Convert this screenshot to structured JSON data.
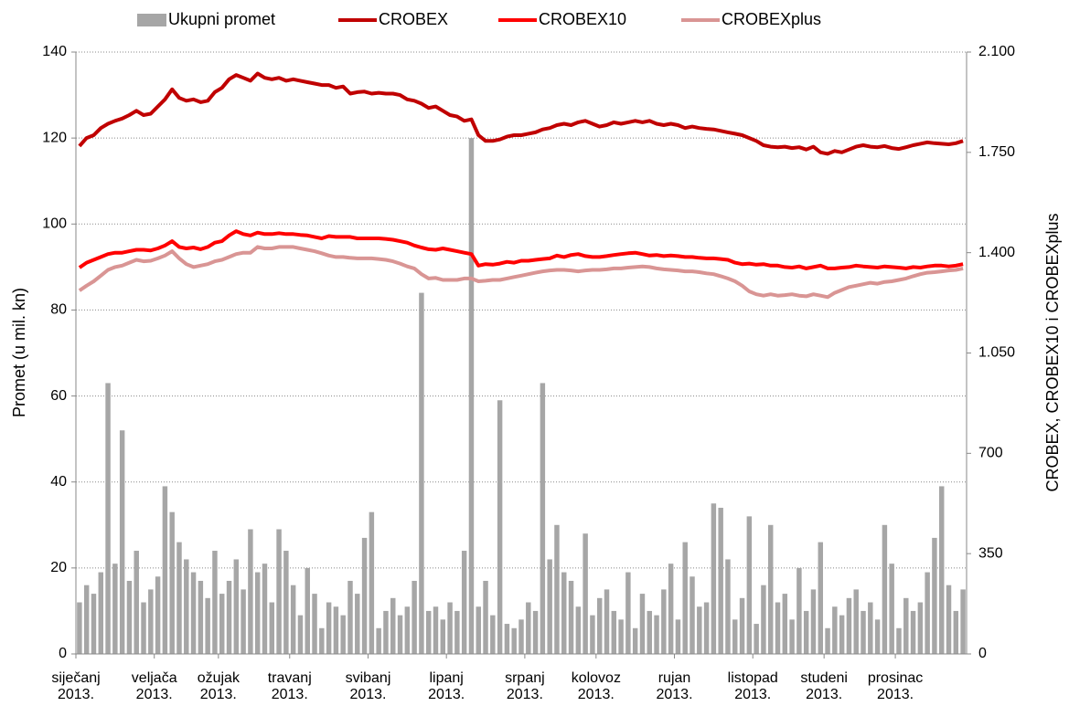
{
  "chart_data": {
    "type": "combo",
    "y_label": "Promet (u mil. kn)",
    "y2_label": "CROBEX, CROBEX10 i CROBEXplus",
    "ylim": [
      0,
      140
    ],
    "yticks": [
      0,
      20,
      40,
      60,
      80,
      100,
      120,
      140
    ],
    "y2lim": [
      0,
      2100
    ],
    "y2ticks": [
      0,
      350,
      700,
      {
        "value": 1050,
        "label": "1.050"
      },
      {
        "value": 1400,
        "label": "1.400"
      },
      {
        "value": 1750,
        "label": "1.750"
      },
      {
        "value": 2100,
        "label": "2.100"
      }
    ],
    "grid": true,
    "legend": "top",
    "categories": [
      "siječanj\n2013.",
      null,
      null,
      null,
      null,
      null,
      null,
      null,
      null,
      null,
      null,
      "veljača\n2013.",
      null,
      null,
      null,
      null,
      null,
      null,
      null,
      null,
      "ožujak\n2013.",
      null,
      null,
      null,
      null,
      null,
      null,
      null,
      null,
      null,
      "travanj\n2013.",
      null,
      null,
      null,
      null,
      null,
      null,
      null,
      null,
      null,
      null,
      "svibanj\n2013.",
      null,
      null,
      null,
      null,
      null,
      null,
      null,
      null,
      null,
      null,
      "lipanj\n2013.",
      null,
      null,
      null,
      null,
      null,
      null,
      null,
      null,
      null,
      null,
      "srpanj\n2013.",
      null,
      null,
      null,
      null,
      null,
      null,
      null,
      null,
      null,
      "kolovoz\n2013.",
      null,
      null,
      null,
      null,
      null,
      null,
      null,
      null,
      null,
      null,
      "rujan\n2013.",
      null,
      null,
      null,
      null,
      null,
      null,
      null,
      null,
      null,
      null,
      "listopad\n2013.",
      null,
      null,
      null,
      null,
      null,
      null,
      null,
      null,
      null,
      "studeni\n2013.",
      null,
      null,
      null,
      null,
      null,
      null,
      null,
      null,
      null,
      "prosinac\n2013.",
      null,
      null,
      null,
      null,
      null,
      null,
      null,
      null,
      null
    ],
    "series": [
      {
        "name": "Ukupni promet",
        "type": "bar",
        "color": "#a6a6a6",
        "axis": "y",
        "values": [
          12,
          16,
          14,
          19,
          63,
          21,
          52,
          17,
          24,
          12,
          15,
          18,
          39,
          33,
          26,
          22,
          19,
          17,
          13,
          24,
          14,
          17,
          22,
          15,
          29,
          19,
          21,
          12,
          29,
          24,
          16,
          9,
          20,
          14,
          6,
          12,
          11,
          9,
          17,
          14,
          27,
          33,
          6,
          10,
          13,
          9,
          11,
          17,
          84,
          10,
          11,
          8,
          12,
          10,
          24,
          120,
          11,
          17,
          9,
          59,
          7,
          6,
          8,
          12,
          10,
          63,
          22,
          30,
          19,
          17,
          11,
          28,
          9,
          13,
          15,
          10,
          8,
          19,
          6,
          14,
          10,
          9,
          15,
          21,
          8,
          26,
          18,
          11,
          12,
          35,
          34,
          22,
          8,
          13,
          32,
          7,
          16,
          30,
          12,
          14,
          8,
          20,
          10,
          15,
          26,
          6,
          11,
          9,
          13,
          15,
          10,
          12,
          8,
          30,
          21,
          6,
          13,
          10,
          12,
          19,
          27,
          39,
          16,
          10,
          15
        ]
      },
      {
        "name": "CROBEX",
        "type": "line",
        "color": "#c00000",
        "axis": "y2",
        "values": [
          1772,
          1800,
          1810,
          1835,
          1850,
          1860,
          1868,
          1880,
          1895,
          1880,
          1885,
          1910,
          1935,
          1970,
          1940,
          1930,
          1935,
          1925,
          1930,
          1960,
          1975,
          2005,
          2020,
          2010,
          2000,
          2025,
          2010,
          2005,
          2010,
          2000,
          2005,
          2000,
          1995,
          1990,
          1985,
          1985,
          1975,
          1980,
          1955,
          1960,
          1962,
          1955,
          1958,
          1955,
          1955,
          1950,
          1935,
          1930,
          1920,
          1905,
          1910,
          1895,
          1880,
          1875,
          1860,
          1865,
          1810,
          1790,
          1790,
          1795,
          1805,
          1810,
          1810,
          1815,
          1820,
          1830,
          1835,
          1845,
          1850,
          1845,
          1855,
          1860,
          1850,
          1840,
          1845,
          1855,
          1850,
          1855,
          1860,
          1855,
          1860,
          1850,
          1845,
          1850,
          1845,
          1835,
          1840,
          1835,
          1832,
          1830,
          1825,
          1820,
          1815,
          1810,
          1800,
          1790,
          1775,
          1770,
          1768,
          1770,
          1765,
          1768,
          1760,
          1770,
          1750,
          1745,
          1755,
          1750,
          1760,
          1770,
          1775,
          1770,
          1768,
          1772,
          1765,
          1762,
          1768,
          1775,
          1780,
          1785,
          1782,
          1780,
          1778,
          1782,
          1790
        ]
      },
      {
        "name": "CROBEX10",
        "type": "line",
        "color": "#ff0000",
        "axis": "y2",
        "values": [
          1348,
          1365,
          1375,
          1385,
          1395,
          1400,
          1400,
          1405,
          1410,
          1410,
          1408,
          1415,
          1425,
          1440,
          1420,
          1415,
          1418,
          1412,
          1420,
          1435,
          1440,
          1460,
          1475,
          1465,
          1460,
          1470,
          1465,
          1465,
          1468,
          1465,
          1465,
          1462,
          1460,
          1455,
          1450,
          1458,
          1455,
          1455,
          1455,
          1450,
          1450,
          1450,
          1450,
          1448,
          1445,
          1440,
          1435,
          1425,
          1418,
          1412,
          1410,
          1415,
          1410,
          1405,
          1400,
          1395,
          1355,
          1360,
          1358,
          1362,
          1368,
          1365,
          1372,
          1372,
          1375,
          1378,
          1380,
          1390,
          1385,
          1392,
          1395,
          1388,
          1385,
          1385,
          1388,
          1392,
          1395,
          1398,
          1400,
          1395,
          1390,
          1392,
          1388,
          1390,
          1388,
          1385,
          1385,
          1382,
          1380,
          1380,
          1378,
          1375,
          1365,
          1360,
          1362,
          1358,
          1360,
          1355,
          1355,
          1350,
          1348,
          1352,
          1345,
          1350,
          1355,
          1345,
          1345,
          1348,
          1350,
          1355,
          1352,
          1350,
          1348,
          1352,
          1350,
          1348,
          1345,
          1350,
          1348,
          1352,
          1355,
          1355,
          1352,
          1355,
          1360
        ]
      },
      {
        "name": "CROBEXplus",
        "type": "line",
        "color": "#d99594",
        "axis": "y2",
        "values": [
          1268,
          1285,
          1300,
          1320,
          1340,
          1350,
          1355,
          1365,
          1375,
          1370,
          1372,
          1380,
          1390,
          1405,
          1380,
          1360,
          1350,
          1355,
          1360,
          1370,
          1375,
          1385,
          1395,
          1400,
          1400,
          1420,
          1415,
          1415,
          1420,
          1420,
          1420,
          1415,
          1410,
          1405,
          1398,
          1390,
          1385,
          1385,
          1382,
          1380,
          1380,
          1380,
          1378,
          1375,
          1370,
          1362,
          1352,
          1345,
          1325,
          1310,
          1312,
          1305,
          1305,
          1305,
          1310,
          1310,
          1300,
          1302,
          1305,
          1305,
          1310,
          1315,
          1320,
          1325,
          1330,
          1335,
          1338,
          1340,
          1340,
          1338,
          1335,
          1338,
          1340,
          1340,
          1342,
          1345,
          1345,
          1348,
          1350,
          1352,
          1350,
          1345,
          1342,
          1340,
          1338,
          1335,
          1335,
          1332,
          1328,
          1325,
          1318,
          1310,
          1300,
          1285,
          1265,
          1255,
          1250,
          1255,
          1250,
          1252,
          1255,
          1250,
          1248,
          1255,
          1250,
          1245,
          1260,
          1270,
          1280,
          1285,
          1290,
          1295,
          1292,
          1298,
          1300,
          1305,
          1310,
          1318,
          1325,
          1330,
          1332,
          1335,
          1338,
          1340,
          1345
        ]
      }
    ]
  }
}
